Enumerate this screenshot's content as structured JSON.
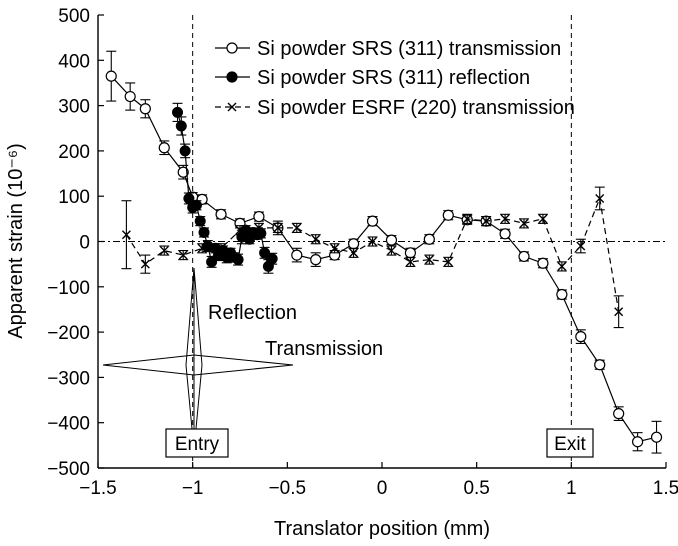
{
  "chart_data": {
    "type": "scatter",
    "xlabel": "Translator position (mm)",
    "ylabel": "Apparent strain (10⁻⁶)",
    "xlim": [
      -1.5,
      1.5
    ],
    "ylim": [
      -500,
      500
    ],
    "x_ticks": [
      -1.5,
      -1,
      -0.5,
      0,
      0.5,
      1,
      1.5
    ],
    "x_tick_labels": [
      "−1.5",
      "−1",
      "−0.5",
      "0",
      "0.5",
      "1",
      "1.5"
    ],
    "y_ticks": [
      -500,
      -400,
      -300,
      -200,
      -100,
      0,
      100,
      200,
      300,
      400,
      500
    ],
    "y_tick_labels": [
      "−500",
      "−400",
      "−300",
      "−200",
      "−100",
      "0",
      "100",
      "200",
      "300",
      "400",
      "500"
    ],
    "grid": false,
    "legend_position": "top-right",
    "series": [
      {
        "name": "Si powder SRS (311) transmission",
        "marker": "open-circle",
        "line": "solid",
        "x": [
          -1.43,
          -1.33,
          -1.25,
          -1.15,
          -1.05,
          -1.0,
          -0.95,
          -0.85,
          -0.75,
          -0.65,
          -0.55,
          -0.45,
          -0.35,
          -0.25,
          -0.15,
          -0.05,
          0.05,
          0.15,
          0.25,
          0.35,
          0.45,
          0.55,
          0.65,
          0.75,
          0.85,
          0.95,
          1.05,
          1.15,
          1.25,
          1.35,
          1.45
        ],
        "y": [
          365,
          320,
          293,
          207,
          153,
          98,
          93,
          60,
          40,
          55,
          30,
          -30,
          -40,
          -30,
          -5,
          45,
          3,
          -25,
          5,
          58,
          48,
          45,
          17,
          -33,
          -48,
          -117,
          -210,
          -272,
          -380,
          -442,
          -432
        ],
        "err": [
          55,
          30,
          20,
          15,
          15,
          10,
          10,
          10,
          10,
          10,
          15,
          15,
          15,
          10,
          10,
          10,
          10,
          10,
          10,
          10,
          10,
          10,
          10,
          10,
          10,
          10,
          15,
          10,
          15,
          20,
          35
        ]
      },
      {
        "name": "Si powder SRS (311) reflection",
        "marker": "filled-circle",
        "line": "solid",
        "x": [
          -1.08,
          -1.06,
          -1.04,
          -1.02,
          -1.0,
          -0.98,
          -0.96,
          -0.94,
          -0.92,
          -0.9,
          -0.88,
          -0.86,
          -0.84,
          -0.82,
          -0.8,
          -0.78,
          -0.76,
          -0.74,
          -0.72,
          -0.7,
          -0.68,
          -0.66,
          -0.64,
          -0.62,
          -0.6,
          -0.58
        ],
        "y": [
          285,
          255,
          200,
          95,
          75,
          80,
          45,
          20,
          -10,
          -45,
          -15,
          -30,
          -20,
          -35,
          -25,
          -35,
          -40,
          10,
          25,
          5,
          20,
          15,
          18,
          -25,
          -55,
          -38
        ],
        "err": [
          20,
          20,
          15,
          12,
          12,
          10,
          10,
          10,
          12,
          12,
          10,
          12,
          10,
          12,
          10,
          10,
          12,
          15,
          10,
          10,
          10,
          10,
          10,
          12,
          15,
          12
        ]
      },
      {
        "name": "Si powder ESRF (220) transmission",
        "marker": "cross",
        "line": "dashed",
        "x": [
          -1.35,
          -1.25,
          -1.15,
          -1.05,
          -0.95,
          -0.85,
          -0.75,
          -0.65,
          -0.55,
          -0.45,
          -0.35,
          -0.25,
          -0.15,
          -0.05,
          0.05,
          0.15,
          0.25,
          0.35,
          0.45,
          0.55,
          0.65,
          0.75,
          0.85,
          0.95,
          1.05,
          1.15,
          1.25
        ],
        "y": [
          15,
          -50,
          -20,
          -30,
          -15,
          -15,
          25,
          30,
          30,
          30,
          5,
          -15,
          -25,
          0,
          -20,
          -45,
          -40,
          -45,
          50,
          45,
          50,
          40,
          50,
          -55,
          -10,
          95,
          -155
        ],
        "err": [
          75,
          20,
          10,
          10,
          10,
          10,
          10,
          10,
          10,
          10,
          10,
          10,
          10,
          10,
          10,
          10,
          10,
          10,
          10,
          10,
          10,
          10,
          10,
          10,
          15,
          25,
          35
        ]
      }
    ],
    "reference_lines": {
      "vertical": [
        {
          "x": -1.0,
          "label": "Entry"
        },
        {
          "x": 1.0,
          "label": "Exit"
        }
      ],
      "horizontal": [
        {
          "y": 0
        }
      ]
    },
    "annotations": [
      "Reflection",
      "Transmission"
    ]
  }
}
